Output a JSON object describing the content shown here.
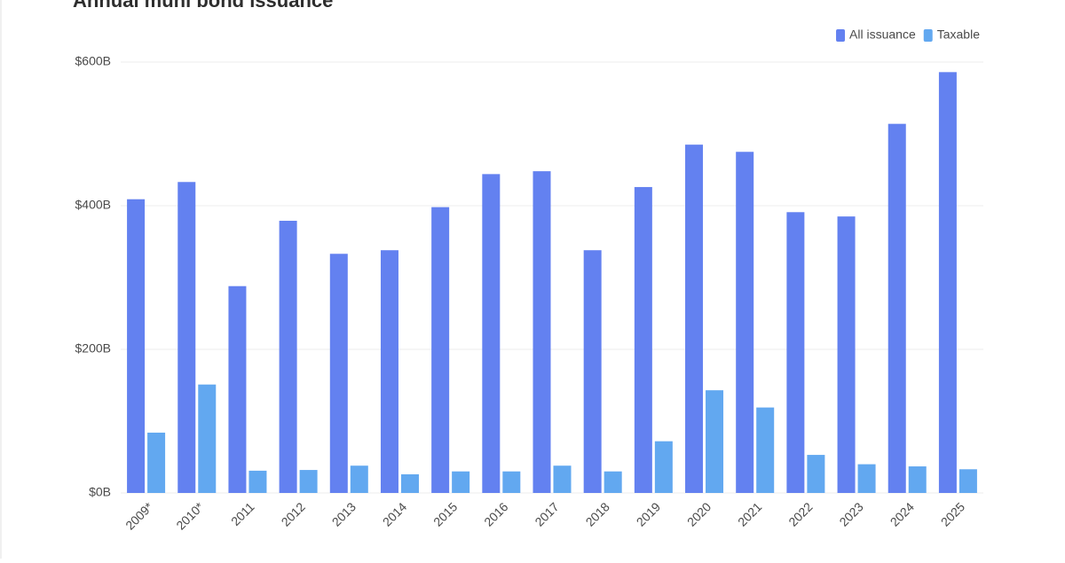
{
  "chart_data": {
    "type": "bar",
    "title": "Annual muni bond issuance",
    "categories": [
      "2009*",
      "2010*",
      "2011",
      "2012",
      "2013",
      "2014",
      "2015",
      "2016",
      "2017",
      "2018",
      "2019",
      "2020",
      "2021",
      "2022",
      "2023",
      "2024",
      "2025"
    ],
    "series": [
      {
        "name": "All issuance",
        "color": "#6381f0",
        "values": [
          409,
          433,
          288,
          379,
          333,
          338,
          398,
          444,
          448,
          338,
          426,
          485,
          475,
          391,
          385,
          514,
          586
        ]
      },
      {
        "name": "Taxable",
        "color": "#62a8f0",
        "values": [
          84,
          151,
          31,
          32,
          38,
          26,
          30,
          30,
          38,
          30,
          72,
          143,
          119,
          53,
          40,
          37,
          33
        ]
      }
    ],
    "ylim": [
      0,
      600
    ],
    "yticks": [
      {
        "value": 0,
        "label": "$0B"
      },
      {
        "value": 200,
        "label": "$200B"
      },
      {
        "value": 400,
        "label": "$400B"
      },
      {
        "value": 600,
        "label": "$600B"
      }
    ],
    "grid": true,
    "legend": "top-right"
  }
}
